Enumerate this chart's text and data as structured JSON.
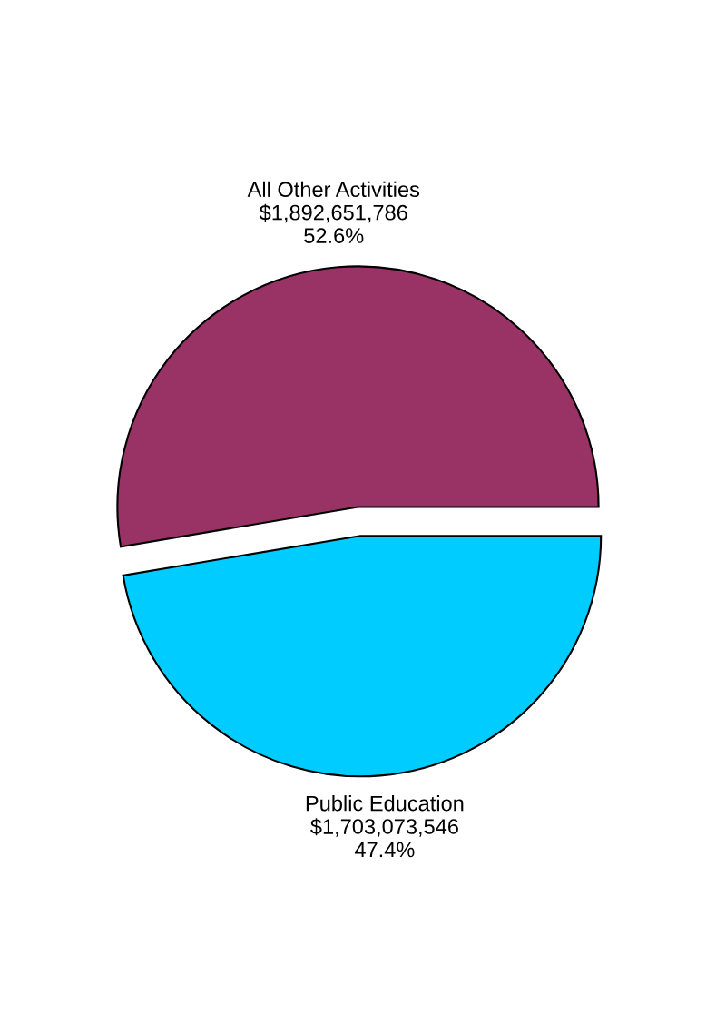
{
  "chart_data": {
    "type": "pie",
    "categories": [
      "All Other Activities",
      "Public Education"
    ],
    "values": [
      1892651786,
      1703073546
    ],
    "colors": [
      "#993366",
      "#00ccff"
    ],
    "value_labels": [
      "$1,892,651,786\n52.6%",
      "$1,703,073,546\n47.4%"
    ]
  }
}
